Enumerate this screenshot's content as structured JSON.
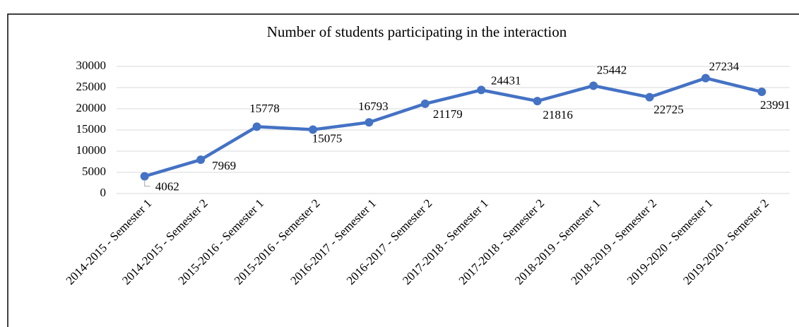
{
  "chart_data": {
    "type": "line",
    "title": "Number of students participating in the interaction",
    "categories": [
      "2014-2015 - Semester 1",
      "2014-2015 - Semester 2",
      "2015-2016 - Semester 1",
      "2015-2016 - Semester 2",
      "2016-2017 - Semester 1",
      "2016-2017 - Semester 2",
      "2017-2018 - Semester 1",
      "2017-2018 - Semester 2",
      "2018-2019 - Semester 1",
      "2018-2019 - Semester 2",
      "2019-2020 - Semester 1",
      "2019-2020 - Semester 2"
    ],
    "values": [
      4062,
      7969,
      15778,
      15075,
      16793,
      21179,
      24431,
      21816,
      25442,
      22725,
      27234,
      23991
    ],
    "color": "#4472c4",
    "ylim": [
      0,
      30000
    ],
    "yticks": [
      0,
      5000,
      10000,
      15000,
      20000,
      25000,
      30000
    ],
    "grid": true
  }
}
